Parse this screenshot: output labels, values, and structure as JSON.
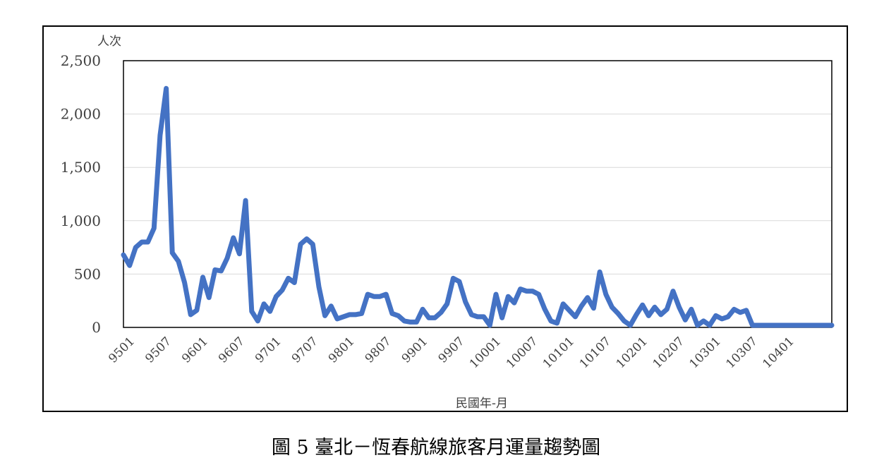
{
  "caption": "圖 5  臺北－恆春航線旅客月運量趨勢圖",
  "chart_data": {
    "type": "line",
    "title": "",
    "ylabel": "人次",
    "xlabel": "民國年-月",
    "ylim": [
      0,
      2500
    ],
    "yticks": [
      0,
      500,
      1000,
      1500,
      2000,
      2500
    ],
    "ytick_labels": [
      "0",
      "500",
      "1,000",
      "1,500",
      "2,000",
      "2,500"
    ],
    "xtick_labels": [
      "9501",
      "9507",
      "9601",
      "9607",
      "9701",
      "9707",
      "9801",
      "9807",
      "9901",
      "9907",
      "10001",
      "10007",
      "10101",
      "10107",
      "10201",
      "10207",
      "10301",
      "10307",
      "10401"
    ],
    "grid": true,
    "line_color": "#4472C4",
    "series": [
      {
        "values": [
          680,
          580,
          750,
          800,
          800,
          930,
          1800,
          2240,
          700,
          620,
          420,
          120,
          160,
          470,
          280,
          540,
          530,
          650,
          840,
          690,
          1190,
          150,
          60,
          220,
          150,
          290,
          350,
          460,
          420,
          780,
          830,
          780,
          380,
          110,
          200,
          80,
          100,
          120,
          120,
          130,
          310,
          290,
          290,
          310,
          130,
          110,
          60,
          50,
          50,
          170,
          90,
          90,
          140,
          220,
          460,
          430,
          240,
          120,
          100,
          100,
          20,
          310,
          90,
          290,
          230,
          360,
          340,
          340,
          310,
          170,
          60,
          40,
          220,
          160,
          100,
          200,
          280,
          180,
          520,
          310,
          190,
          130,
          60,
          20,
          120,
          210,
          110,
          190,
          120,
          170,
          340,
          190,
          70,
          170,
          20,
          60,
          20,
          110,
          80,
          100,
          170,
          140,
          160,
          20,
          20,
          20,
          20,
          20,
          20,
          20,
          20,
          20,
          20,
          20,
          20,
          20,
          20
        ]
      }
    ]
  }
}
